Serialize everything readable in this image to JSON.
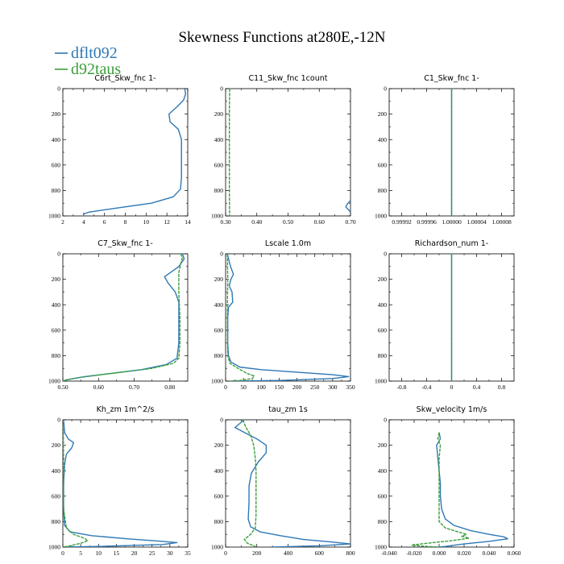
{
  "figure": {
    "title": "Skewness Functions at280E,-12N",
    "legend": [
      {
        "label": "dflt092",
        "color": "#2e78b5"
      },
      {
        "label": "d92taus",
        "color": "#3a9f3a"
      }
    ]
  },
  "chart_data": [
    {
      "type": "line",
      "title": "C6rt_Skw_fnc   1-",
      "xlim": [
        2,
        14
      ],
      "ylim": [
        0,
        1000
      ],
      "y_inverted": true,
      "xticks": [
        2,
        4,
        6,
        8,
        10,
        12,
        14
      ],
      "xtick_labels": [
        "2",
        "4",
        "6",
        "8",
        "10",
        "12",
        "14"
      ],
      "yticks": [
        0,
        200,
        400,
        600,
        800,
        1000
      ],
      "series": [
        {
          "name": "dflt092",
          "points": [
            [
              13.7,
              0
            ],
            [
              13.8,
              40
            ],
            [
              13.6,
              90
            ],
            [
              13.0,
              140
            ],
            [
              12.2,
              200
            ],
            [
              12.3,
              260
            ],
            [
              13.1,
              320
            ],
            [
              13.4,
              400
            ],
            [
              13.4,
              500
            ],
            [
              13.4,
              600
            ],
            [
              13.4,
              700
            ],
            [
              13.3,
              790
            ],
            [
              12.6,
              850
            ],
            [
              10.5,
              900
            ],
            [
              7.0,
              940
            ],
            [
              4.5,
              970
            ],
            [
              4.0,
              985
            ],
            [
              4.0,
              1000
            ]
          ]
        }
      ]
    },
    {
      "type": "line",
      "title": "C11_Skw_fnc   1count",
      "xlim": [
        0.3,
        0.7
      ],
      "ylim": [
        0,
        1000
      ],
      "y_inverted": true,
      "xticks": [
        0.3,
        0.4,
        0.5,
        0.6,
        0.7
      ],
      "xtick_labels": [
        "0.30",
        "0.40",
        "0.50",
        "0.60",
        "0.70"
      ],
      "yticks": [
        0,
        200,
        400,
        600,
        800,
        1000
      ],
      "series": [
        {
          "name": "dflt092",
          "points": [
            [
              0.7,
              880
            ],
            [
              0.69,
              905
            ],
            [
              0.685,
              930
            ],
            [
              0.695,
              955
            ],
            [
              0.7,
              970
            ]
          ]
        },
        {
          "name": "d92taus",
          "points": [
            [
              0.313,
              0
            ],
            [
              0.312,
              200
            ],
            [
              0.312,
              500
            ],
            [
              0.312,
              800
            ],
            [
              0.313,
              1000
            ]
          ]
        }
      ]
    },
    {
      "type": "line",
      "title": "C1_Skw_fnc   1-",
      "xlim": [
        0.9999,
        1.0001
      ],
      "ylim": [
        0,
        1000
      ],
      "y_inverted": true,
      "xticks": [
        0.99992,
        0.99996,
        1.0,
        1.00004,
        1.00008
      ],
      "xtick_labels": [
        "0.99992",
        "0.99996",
        "1.00000",
        "1.00004",
        "1.00008"
      ],
      "yticks": [
        0,
        200,
        400,
        600,
        800,
        1000
      ],
      "series": [
        {
          "name": "dflt092",
          "points": [
            [
              1.0,
              0
            ],
            [
              1.0,
              1000
            ]
          ]
        },
        {
          "name": "d92taus",
          "points": [
            [
              1.0,
              0
            ],
            [
              1.0,
              1000
            ]
          ]
        }
      ]
    },
    {
      "type": "line",
      "title": "C7_Skw_fnc   1-",
      "xlim": [
        0.5,
        0.85
      ],
      "ylim": [
        0,
        1000
      ],
      "y_inverted": true,
      "xticks": [
        0.5,
        0.6,
        0.7,
        0.8
      ],
      "xtick_labels": [
        "0.50",
        "0.60",
        "0.70",
        "0.80"
      ],
      "yticks": [
        0,
        200,
        400,
        600,
        800,
        1000
      ],
      "series": [
        {
          "name": "dflt092",
          "points": [
            [
              0.835,
              0
            ],
            [
              0.84,
              40
            ],
            [
              0.825,
              100
            ],
            [
              0.8,
              150
            ],
            [
              0.785,
              180
            ],
            [
              0.795,
              230
            ],
            [
              0.815,
              300
            ],
            [
              0.825,
              380
            ],
            [
              0.825,
              500
            ],
            [
              0.825,
              600
            ],
            [
              0.825,
              700
            ],
            [
              0.82,
              820
            ],
            [
              0.79,
              870
            ],
            [
              0.72,
              910
            ],
            [
              0.62,
              945
            ],
            [
              0.55,
              970
            ],
            [
              0.51,
              990
            ],
            [
              0.5,
              1000
            ]
          ]
        },
        {
          "name": "d92taus",
          "points": [
            [
              0.83,
              0
            ],
            [
              0.835,
              30
            ],
            [
              0.83,
              80
            ],
            [
              0.825,
              150
            ],
            [
              0.825,
              300
            ],
            [
              0.828,
              500
            ],
            [
              0.828,
              700
            ],
            [
              0.825,
              820
            ],
            [
              0.81,
              860
            ],
            [
              0.75,
              900
            ],
            [
              0.65,
              935
            ],
            [
              0.56,
              965
            ],
            [
              0.52,
              985
            ],
            [
              0.5,
              1000
            ]
          ]
        }
      ]
    },
    {
      "type": "line",
      "title": "Lscale   1.0m",
      "xlim": [
        0,
        350
      ],
      "ylim": [
        0,
        1000
      ],
      "y_inverted": true,
      "xticks": [
        0,
        50,
        100,
        150,
        200,
        250,
        300,
        350
      ],
      "xtick_labels": [
        "0",
        "50",
        "100",
        "150",
        "200",
        "250",
        "300",
        "350"
      ],
      "yticks": [
        0,
        200,
        400,
        600,
        800,
        1000
      ],
      "series": [
        {
          "name": "dflt092",
          "points": [
            [
              5,
              0
            ],
            [
              10,
              60
            ],
            [
              15,
              110
            ],
            [
              22,
              160
            ],
            [
              15,
              200
            ],
            [
              10,
              250
            ],
            [
              18,
              300
            ],
            [
              20,
              380
            ],
            [
              8,
              420
            ],
            [
              6,
              500
            ],
            [
              6,
              700
            ],
            [
              8,
              800
            ],
            [
              15,
              850
            ],
            [
              40,
              890
            ],
            [
              100,
              910
            ],
            [
              200,
              930
            ],
            [
              300,
              950
            ],
            [
              345,
              965
            ],
            [
              300,
              980
            ],
            [
              150,
              995
            ],
            [
              20,
              1000
            ]
          ]
        },
        {
          "name": "d92taus",
          "points": [
            [
              5,
              0
            ],
            [
              6,
              200
            ],
            [
              5,
              400
            ],
            [
              5,
              600
            ],
            [
              6,
              800
            ],
            [
              12,
              860
            ],
            [
              35,
              900
            ],
            [
              60,
              940
            ],
            [
              80,
              960
            ],
            [
              75,
              980
            ],
            [
              40,
              995
            ],
            [
              10,
              1000
            ]
          ]
        }
      ]
    },
    {
      "type": "line",
      "title": "Richardson_num   1-",
      "xlim": [
        -1,
        1
      ],
      "ylim": [
        0,
        1000
      ],
      "y_inverted": true,
      "xticks": [
        -0.8,
        -0.4,
        0,
        0.4,
        0.8
      ],
      "xtick_labels": [
        "-0.8",
        "-0.4",
        "0",
        "0.4",
        "0.8"
      ],
      "yticks": [
        0,
        200,
        400,
        600,
        800,
        1000
      ],
      "series": [
        {
          "name": "dflt092",
          "points": [
            [
              0,
              0
            ],
            [
              0,
              1000
            ]
          ]
        },
        {
          "name": "d92taus",
          "points": [
            [
              0,
              0
            ],
            [
              0,
              1000
            ]
          ]
        }
      ]
    },
    {
      "type": "line",
      "title": "Kh_zm   1m^2/s",
      "xlim": [
        0,
        35
      ],
      "ylim": [
        0,
        1000
      ],
      "y_inverted": true,
      "xticks": [
        0,
        5,
        10,
        15,
        20,
        25,
        30,
        35
      ],
      "xtick_labels": [
        "0",
        "5",
        "10",
        "15",
        "20",
        "25",
        "30",
        "35"
      ],
      "yticks": [
        0,
        200,
        400,
        600,
        800,
        1000
      ],
      "series": [
        {
          "name": "dflt092",
          "points": [
            [
              0.2,
              0
            ],
            [
              0.5,
              100
            ],
            [
              1.5,
              150
            ],
            [
              3,
              180
            ],
            [
              2.5,
              220
            ],
            [
              1,
              270
            ],
            [
              0.5,
              350
            ],
            [
              0.2,
              500
            ],
            [
              0.2,
              700
            ],
            [
              0.5,
              830
            ],
            [
              2,
              880
            ],
            [
              8,
              910
            ],
            [
              18,
              935
            ],
            [
              28,
              955
            ],
            [
              32,
              965
            ],
            [
              28,
              980
            ],
            [
              10,
              995
            ],
            [
              0,
              1000
            ]
          ]
        },
        {
          "name": "d92taus",
          "points": [
            [
              0.1,
              0
            ],
            [
              0.2,
              300
            ],
            [
              0.2,
              700
            ],
            [
              1,
              850
            ],
            [
              3,
              900
            ],
            [
              6,
              930
            ],
            [
              7,
              950
            ],
            [
              5,
              970
            ],
            [
              2,
              990
            ],
            [
              0,
              1000
            ]
          ]
        }
      ]
    },
    {
      "type": "line",
      "title": "tau_zm   1s",
      "xlim": [
        0,
        800
      ],
      "ylim": [
        0,
        1000
      ],
      "y_inverted": true,
      "xticks": [
        0,
        200,
        400,
        600,
        800
      ],
      "xtick_labels": [
        "0",
        "200",
        "400",
        "600",
        "800"
      ],
      "yticks": [
        0,
        200,
        400,
        600,
        800,
        1000
      ],
      "series": [
        {
          "name": "dflt092",
          "points": [
            [
              120,
              0
            ],
            [
              60,
              60
            ],
            [
              120,
              100
            ],
            [
              200,
              150
            ],
            [
              260,
              200
            ],
            [
              260,
              260
            ],
            [
              210,
              330
            ],
            [
              165,
              420
            ],
            [
              150,
              520
            ],
            [
              150,
              650
            ],
            [
              145,
              780
            ],
            [
              160,
              840
            ],
            [
              220,
              880
            ],
            [
              350,
              910
            ],
            [
              500,
              940
            ],
            [
              680,
              960
            ],
            [
              800,
              975
            ],
            [
              600,
              990
            ],
            [
              300,
              1000
            ]
          ]
        },
        {
          "name": "d92taus",
          "points": [
            [
              110,
              0
            ],
            [
              130,
              60
            ],
            [
              160,
              120
            ],
            [
              180,
              200
            ],
            [
              190,
              300
            ],
            [
              195,
              400
            ],
            [
              195,
              600
            ],
            [
              195,
              750
            ],
            [
              190,
              850
            ],
            [
              160,
              900
            ],
            [
              120,
              940
            ],
            [
              140,
              970
            ],
            [
              180,
              990
            ],
            [
              200,
              1000
            ]
          ]
        }
      ]
    },
    {
      "type": "line",
      "title": "Skw_velocity   1m/s",
      "xlim": [
        -0.04,
        0.06
      ],
      "ylim": [
        0,
        1000
      ],
      "y_inverted": true,
      "xticks": [
        -0.04,
        -0.02,
        0,
        0.02,
        0.04,
        0.06
      ],
      "xtick_labels": [
        "-0.040",
        "-0.020",
        "0.000",
        "0.020",
        "0.040",
        "0.060"
      ],
      "yticks": [
        0,
        200,
        400,
        600,
        800,
        1000
      ],
      "series": [
        {
          "name": "dflt092",
          "points": [
            [
              0.0,
              100
            ],
            [
              0.001,
              150
            ],
            [
              -0.002,
              200
            ],
            [
              -0.001,
              300
            ],
            [
              0.0,
              400
            ],
            [
              0.001,
              500
            ],
            [
              0.001,
              600
            ],
            [
              0.002,
              700
            ],
            [
              0.005,
              780
            ],
            [
              0.012,
              830
            ],
            [
              0.025,
              870
            ],
            [
              0.04,
              900
            ],
            [
              0.052,
              920
            ],
            [
              0.055,
              935
            ],
            [
              0.04,
              955
            ],
            [
              0.02,
              975
            ],
            [
              0.005,
              995
            ],
            [
              0.0,
              1000
            ]
          ]
        },
        {
          "name": "d92taus",
          "points": [
            [
              0.0,
              100
            ],
            [
              -0.001,
              150
            ],
            [
              0.001,
              200
            ],
            [
              0.0,
              300
            ],
            [
              0.0,
              500
            ],
            [
              0.0,
              700
            ],
            [
              0.0,
              800
            ],
            [
              0.005,
              850
            ],
            [
              0.015,
              880
            ],
            [
              0.022,
              900
            ],
            [
              0.018,
              915
            ],
            [
              0.024,
              930
            ],
            [
              0.01,
              950
            ],
            [
              -0.01,
              970
            ],
            [
              -0.022,
              985
            ],
            [
              -0.01,
              995
            ],
            [
              0.0,
              1000
            ]
          ]
        }
      ]
    }
  ]
}
